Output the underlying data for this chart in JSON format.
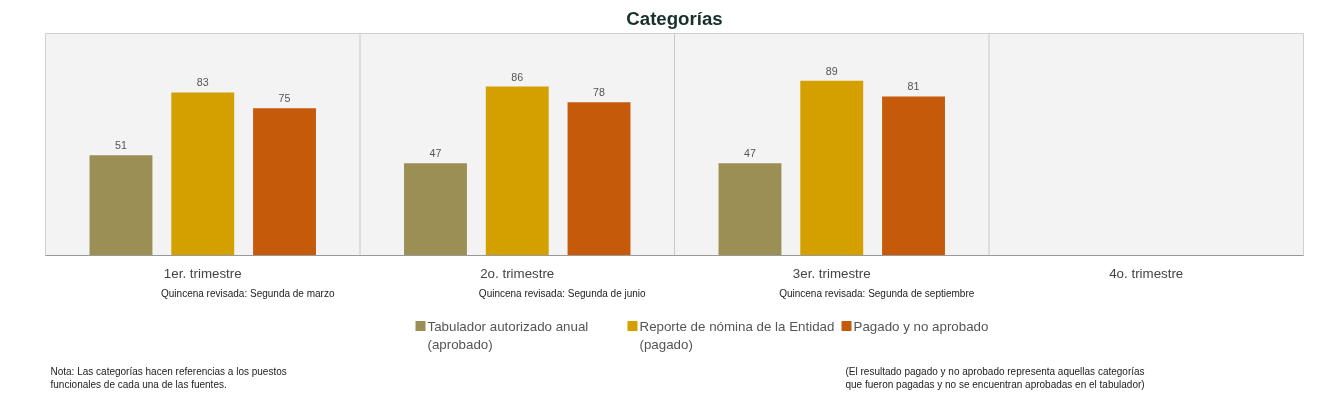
{
  "chart_data": {
    "type": "bar",
    "title": "Categorías",
    "categories": [
      "1er. trimestre",
      "2o. trimestre",
      "3er. trimestre",
      "4o. trimestre"
    ],
    "series": [
      {
        "name": "Tabulador autorizado anual\n(aprobado)",
        "color": "#9b8f55",
        "values": [
          51,
          47,
          47,
          null
        ]
      },
      {
        "name": "Reporte de nómina de la Entidad\n(pagado)",
        "color": "#d4a000",
        "values": [
          83,
          86,
          89,
          null
        ]
      },
      {
        "name": "Pagado y no aprobado",
        "color": "#c55a0a",
        "values": [
          75,
          78,
          81,
          null
        ]
      }
    ],
    "data_labels": true,
    "legend": "bottom",
    "grid": false,
    "annotations": [
      "Quincena revisada: Segunda de marzo",
      "Quincena revisada: Segunda de junio",
      "Quincena revisada: Segunda de septiembre",
      "Nota: Las categorías hacen referencias a los puestos\nfuncionales de cada una de las fuentes.",
      "(El resultado pagado y no aprobado representa aquellas categorías\nque fueron pagadas y no se encuentran aprobadas en el tabulador)"
    ]
  }
}
